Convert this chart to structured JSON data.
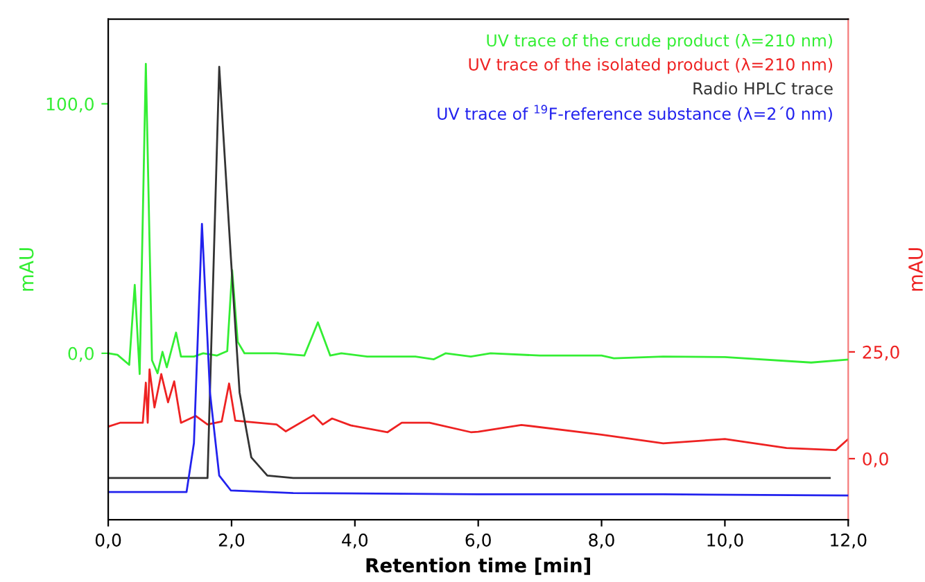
{
  "chart_data": {
    "type": "line",
    "xlabel": "Retention time [min]",
    "ylabel": "mAU",
    "y2label": "mAU",
    "xlim": [
      0,
      12
    ],
    "xticks": [
      {
        "value": 0,
        "label": "0,0"
      },
      {
        "value": 2,
        "label": "2,0"
      },
      {
        "value": 4,
        "label": "4,0"
      },
      {
        "value": 6,
        "label": "6,0"
      },
      {
        "value": 8,
        "label": "8,0"
      },
      {
        "value": 10,
        "label": "10,0"
      },
      {
        "value": 12,
        "label": "12,0"
      }
    ],
    "ylim": [
      -66.7,
      133.9
    ],
    "yticks": [
      {
        "value": 0,
        "label": "0,0"
      },
      {
        "value": 100,
        "label": "100,0"
      }
    ],
    "y2lim": [
      -14.3,
      102.9
    ],
    "y2ticks": [
      {
        "value": 0,
        "label": "0,0"
      },
      {
        "value": 25,
        "label": "25,0"
      }
    ],
    "legend": "top right",
    "grid": false,
    "marker": "none",
    "line_style": "solid",
    "series": [
      {
        "name": "UV trace of the crude product (λ=210 nm)",
        "color": "#33ee33",
        "x": [
          0,
          0.15,
          0.34,
          0.43,
          0.51,
          0.61,
          0.71,
          0.8,
          0.88,
          0.95,
          1.1,
          1.18,
          1.39,
          1.54,
          1.76,
          1.93,
          2.01,
          2.1,
          2.21,
          2.73,
          3.18,
          3.4,
          3.6,
          3.78,
          4.2,
          4.98,
          5.28,
          5.47,
          5.88,
          6.2,
          7.0,
          8.0,
          8.2,
          9.0,
          10.0,
          11.4,
          12.0
        ],
        "values": [
          0,
          -0.6,
          -4.6,
          27.4,
          -8.3,
          116,
          -2.8,
          -8,
          0.6,
          -5.6,
          8.3,
          -1.3,
          -1.3,
          0,
          -0.9,
          0.9,
          33.3,
          4.6,
          0,
          0,
          -0.9,
          12.4,
          -0.9,
          0,
          -1.3,
          -1.3,
          -2.4,
          0,
          -1.3,
          0,
          -0.9,
          -0.9,
          -2,
          -1.3,
          -1.5,
          -3.7,
          -2.5
        ]
      },
      {
        "name": "UV trace of the isolated product (λ=210 nm)",
        "color": "#ee2222",
        "axis": "y2",
        "x": [
          0,
          0.19,
          0.56,
          0.61,
          0.64,
          0.67,
          0.75,
          0.86,
          0.97,
          1.07,
          1.18,
          1.42,
          1.61,
          1.84,
          1.96,
          2.06,
          2.73,
          2.88,
          3.33,
          3.48,
          3.63,
          3.93,
          4.53,
          4.76,
          5.21,
          5.88,
          6.0,
          6.7,
          8.0,
          9.0,
          10.0,
          11.0,
          11.8,
          12.0
        ],
        "values": [
          7.5,
          8.4,
          8.4,
          17.8,
          8.4,
          20.9,
          12,
          19.8,
          13.2,
          18.1,
          8.4,
          10,
          8,
          8.7,
          17.6,
          8.9,
          8,
          6.4,
          10.2,
          8,
          9.4,
          7.8,
          6.2,
          8.4,
          8.4,
          6.2,
          6.3,
          7.9,
          5.6,
          3.6,
          4.6,
          2.5,
          2,
          4.6
        ]
      },
      {
        "name": "Radio HPLC trace",
        "color": "#333333",
        "x": [
          0,
          1.61,
          1.8,
          1.99,
          2.13,
          2.32,
          2.58,
          3.0,
          11.7
        ],
        "values": [
          -50,
          -50,
          114.8,
          38,
          -15.7,
          -41.7,
          -49,
          -50,
          -50
        ]
      },
      {
        "name": "UV trace of $^{19}$F-reference substance (λ=2´0 nm)",
        "color": "#2222ee",
        "x": [
          0,
          1.27,
          1.39,
          1.52,
          1.65,
          1.8,
          1.99,
          3.0,
          6.0,
          9.0,
          12.0
        ],
        "values": [
          -55.6,
          -55.6,
          -36,
          51.9,
          -15.7,
          -49,
          -55,
          -56,
          -56.5,
          -56.5,
          -57
        ]
      }
    ]
  }
}
